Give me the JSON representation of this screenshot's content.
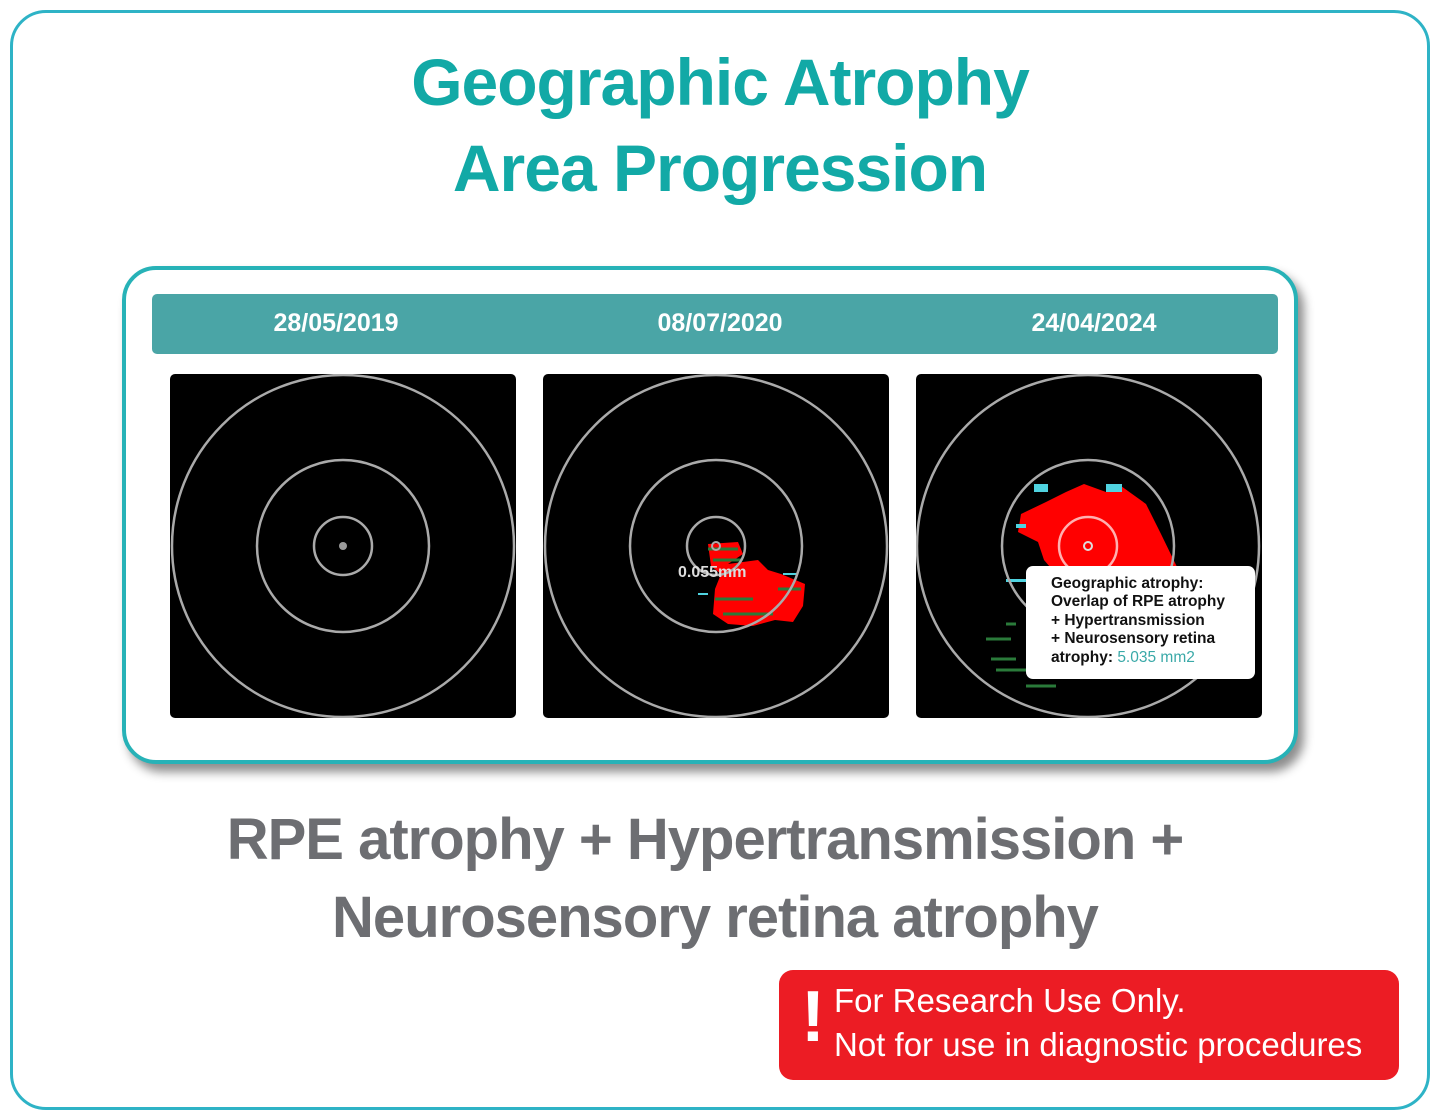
{
  "title": {
    "line1": "Geographic Atrophy",
    "line2": "Area Progression"
  },
  "timeline": {
    "dates": [
      "28/05/2019",
      "08/07/2020",
      "24/04/2024"
    ]
  },
  "panels": [
    {
      "label": ""
    },
    {
      "measure_label": "0.055mm"
    },
    {
      "tooltip": {
        "line1": "Geographic atrophy:",
        "line2": "Overlap of RPE atrophy",
        "line3": "+ Hypertransmission",
        "line4": "+ Neurosensory retina",
        "line5_prefix": "atrophy: ",
        "value": "5.035 mm2"
      }
    }
  ],
  "subtitle": {
    "line1": "RPE atrophy + Hypertransmission +",
    "line2": "Neurosensory retina atrophy"
  },
  "warning": {
    "icon": "exclamation-icon",
    "line1": "For Research Use Only.",
    "line2": "Not for use in diagnostic procedures"
  },
  "colors": {
    "accent": "#12a9a6",
    "band": "#4aa5a6",
    "atrophy": "#ff0000",
    "warning": "#ec1c24",
    "text_gray": "#6d6e72"
  }
}
